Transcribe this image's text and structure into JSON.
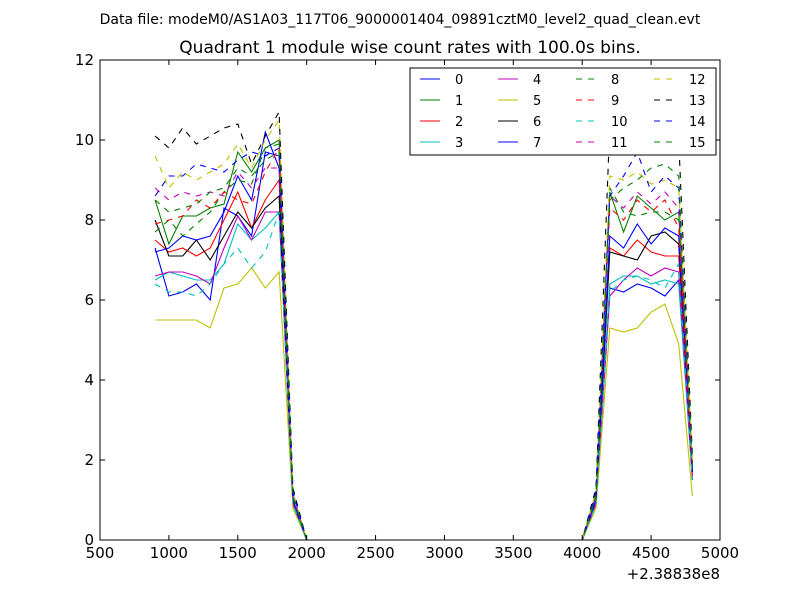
{
  "figure": {
    "suptitle": "Data file: modeM0/AS1A03_117T06_9000001404_09891cztM0_level2_quad_clean.evt"
  },
  "chart_data": {
    "type": "line",
    "title": "Quadrant 1 module wise count rates with 100.0s bins.",
    "xlabel": "",
    "ylabel": "",
    "x_offset_label": "+2.38838e8",
    "xlim": [
      500,
      5000
    ],
    "ylim": [
      0,
      12
    ],
    "xticks": [
      500,
      1000,
      1500,
      2000,
      2500,
      3000,
      3500,
      4000,
      4500,
      5000
    ],
    "yticks": [
      0,
      2,
      4,
      6,
      8,
      10,
      12
    ],
    "grid": false,
    "legend_position": "top-right",
    "legend_columns": 4,
    "x": [
      900,
      1000,
      1100,
      1200,
      1300,
      1400,
      1500,
      1600,
      1700,
      1800,
      1900,
      2000,
      2100,
      2200,
      2300,
      2400,
      2500,
      2600,
      2700,
      2800,
      2900,
      3000,
      3100,
      3200,
      3300,
      3400,
      3500,
      3600,
      3700,
      3800,
      3900,
      4000,
      4100,
      4200,
      4300,
      4400,
      4500,
      4600,
      4700,
      4800
    ],
    "series": [
      {
        "name": "0",
        "color": "#0000ff",
        "dash": "solid",
        "values": [
          7.3,
          6.1,
          6.2,
          6.4,
          6.0,
          8.3,
          8.1,
          7.6,
          9.7,
          9.6,
          0.9,
          0,
          0,
          0,
          0,
          0,
          0,
          0,
          0,
          0,
          0,
          0,
          0,
          0,
          0,
          0,
          0,
          0,
          0,
          0,
          0,
          0,
          1.0,
          6.3,
          6.2,
          6.4,
          6.3,
          6.1,
          6.5,
          1.7
        ]
      },
      {
        "name": "1",
        "color": "#008000",
        "dash": "solid",
        "values": [
          8.5,
          7.4,
          8.1,
          8.1,
          8.3,
          8.4,
          9.7,
          9.2,
          9.8,
          10.0,
          1.0,
          0,
          0,
          0,
          0,
          0,
          0,
          0,
          0,
          0,
          0,
          0,
          0,
          0,
          0,
          0,
          0,
          0,
          0,
          0,
          0,
          0,
          1.1,
          8.7,
          7.7,
          8.6,
          8.3,
          8.0,
          8.2,
          1.8
        ]
      },
      {
        "name": "2",
        "color": "#ff0000",
        "dash": "solid",
        "values": [
          7.5,
          7.2,
          7.3,
          7.1,
          7.3,
          8.0,
          8.7,
          7.8,
          8.5,
          9.0,
          1.0,
          0,
          0,
          0,
          0,
          0,
          0,
          0,
          0,
          0,
          0,
          0,
          0,
          0,
          0,
          0,
          0,
          0,
          0,
          0,
          0,
          0,
          1.0,
          7.3,
          7.1,
          7.5,
          7.2,
          7.1,
          7.1,
          1.6
        ]
      },
      {
        "name": "3",
        "color": "#00bfbf",
        "dash": "solid",
        "values": [
          6.5,
          6.7,
          6.6,
          6.5,
          6.5,
          6.9,
          7.9,
          7.5,
          7.8,
          8.2,
          0.9,
          0,
          0,
          0,
          0,
          0,
          0,
          0,
          0,
          0,
          0,
          0,
          0,
          0,
          0,
          0,
          0,
          0,
          0,
          0,
          0,
          0,
          0.9,
          6.4,
          6.6,
          6.6,
          6.4,
          6.5,
          6.4,
          1.5
        ]
      },
      {
        "name": "4",
        "color": "#bf00bf",
        "dash": "solid",
        "values": [
          6.6,
          6.7,
          6.7,
          6.6,
          6.4,
          7.3,
          8.1,
          7.5,
          8.2,
          8.2,
          0.9,
          0,
          0,
          0,
          0,
          0,
          0,
          0,
          0,
          0,
          0,
          0,
          0,
          0,
          0,
          0,
          0,
          0,
          0,
          0,
          0,
          0,
          0.9,
          6.1,
          6.5,
          6.8,
          6.6,
          6.8,
          6.7,
          1.5
        ]
      },
      {
        "name": "5",
        "color": "#bfbf00",
        "dash": "solid",
        "values": [
          5.5,
          5.5,
          5.5,
          5.5,
          5.3,
          6.3,
          6.4,
          6.8,
          6.3,
          6.7,
          0.8,
          0,
          0,
          0,
          0,
          0,
          0,
          0,
          0,
          0,
          0,
          0,
          0,
          0,
          0,
          0,
          0,
          0,
          0,
          0,
          0,
          0,
          0.8,
          5.3,
          5.2,
          5.3,
          5.7,
          5.9,
          4.9,
          1.1
        ]
      },
      {
        "name": "6",
        "color": "#000000",
        "dash": "solid",
        "values": [
          8.0,
          7.1,
          7.1,
          7.5,
          7.0,
          7.6,
          8.2,
          7.8,
          8.3,
          8.6,
          1.0,
          0,
          0,
          0,
          0,
          0,
          0,
          0,
          0,
          0,
          0,
          0,
          0,
          0,
          0,
          0,
          0,
          0,
          0,
          0,
          0,
          0,
          1.0,
          7.2,
          7.1,
          7.0,
          7.6,
          7.7,
          7.4,
          1.7
        ]
      },
      {
        "name": "7",
        "color": "#0000ff",
        "dash": "solid",
        "values": [
          7.2,
          7.3,
          7.6,
          7.5,
          7.6,
          8.2,
          9.1,
          8.5,
          10.2,
          9.3,
          1.0,
          0,
          0,
          0,
          0,
          0,
          0,
          0,
          0,
          0,
          0,
          0,
          0,
          0,
          0,
          0,
          0,
          0,
          0,
          0,
          0,
          0,
          1.0,
          7.6,
          7.3,
          7.9,
          7.4,
          7.8,
          7.6,
          1.7
        ]
      },
      {
        "name": "8",
        "color": "#008000",
        "dash": "dashed",
        "values": [
          7.7,
          8.0,
          7.6,
          7.9,
          8.2,
          8.7,
          9.0,
          8.9,
          9.8,
          9.9,
          1.1,
          0,
          0,
          0,
          0,
          0,
          0,
          0,
          0,
          0,
          0,
          0,
          0,
          0,
          0,
          0,
          0,
          0,
          0,
          0,
          0,
          0,
          1.2,
          8.8,
          8.2,
          8.1,
          8.2,
          8.2,
          8.0,
          1.9
        ]
      },
      {
        "name": "9",
        "color": "#ff0000",
        "dash": "dashed",
        "values": [
          7.9,
          8.0,
          8.1,
          8.5,
          8.3,
          8.7,
          8.5,
          8.4,
          9.2,
          9.8,
          1.1,
          0,
          0,
          0,
          0,
          0,
          0,
          0,
          0,
          0,
          0,
          0,
          0,
          0,
          0,
          0,
          0,
          0,
          0,
          0,
          0,
          0,
          1.1,
          8.3,
          8.0,
          8.5,
          8.2,
          8.5,
          7.8,
          1.8
        ]
      },
      {
        "name": "10",
        "color": "#00bfbf",
        "dash": "dashed",
        "values": [
          6.4,
          6.2,
          6.2,
          6.1,
          6.4,
          6.9,
          7.3,
          6.8,
          7.2,
          8.2,
          0.9,
          0,
          0,
          0,
          0,
          0,
          0,
          0,
          0,
          0,
          0,
          0,
          0,
          0,
          0,
          0,
          0,
          0,
          0,
          0,
          0,
          0,
          0.9,
          6.2,
          6.5,
          6.6,
          6.5,
          6.3,
          6.9,
          1.5
        ]
      },
      {
        "name": "11",
        "color": "#bf00bf",
        "dash": "dashed",
        "values": [
          8.8,
          8.5,
          8.7,
          8.6,
          8.7,
          8.6,
          9.2,
          8.8,
          9.3,
          9.3,
          1.1,
          0,
          0,
          0,
          0,
          0,
          0,
          0,
          0,
          0,
          0,
          0,
          0,
          0,
          0,
          0,
          0,
          0,
          0,
          0,
          0,
          0,
          1.1,
          8.6,
          8.3,
          8.7,
          8.4,
          8.7,
          8.3,
          1.9
        ]
      },
      {
        "name": "12",
        "color": "#bfbf00",
        "dash": "dashed",
        "values": [
          9.6,
          8.8,
          9.2,
          9.0,
          9.2,
          9.4,
          9.9,
          9.3,
          10.0,
          10.5,
          1.2,
          0,
          0,
          0,
          0,
          0,
          0,
          0,
          0,
          0,
          0,
          0,
          0,
          0,
          0,
          0,
          0,
          0,
          0,
          0,
          0,
          0,
          1.2,
          9.1,
          9.0,
          9.2,
          8.9,
          9.0,
          8.8,
          2.0
        ]
      },
      {
        "name": "13",
        "color": "#000000",
        "dash": "dashed",
        "values": [
          10.1,
          9.8,
          10.3,
          9.9,
          10.1,
          10.3,
          10.4,
          9.4,
          10.1,
          10.7,
          1.3,
          0,
          0,
          0,
          0,
          0,
          0,
          0,
          0,
          0,
          0,
          0,
          0,
          0,
          0,
          0,
          0,
          0,
          0,
          0,
          0,
          0,
          1.3,
          10.4,
          10.2,
          10.1,
          10.0,
          9.9,
          10.0,
          2.1
        ]
      },
      {
        "name": "14",
        "color": "#0000ff",
        "dash": "dashed",
        "values": [
          8.6,
          9.1,
          9.1,
          9.4,
          9.3,
          9.2,
          9.5,
          9.7,
          9.6,
          9.8,
          1.2,
          0,
          0,
          0,
          0,
          0,
          0,
          0,
          0,
          0,
          0,
          0,
          0,
          0,
          0,
          0,
          0,
          0,
          0,
          0,
          0,
          0,
          1.2,
          8.6,
          9.1,
          9.7,
          8.7,
          9.1,
          8.8,
          1.9
        ]
      },
      {
        "name": "15",
        "color": "#008000",
        "dash": "dashed",
        "values": [
          8.5,
          8.2,
          8.3,
          8.4,
          8.7,
          8.8,
          9.3,
          9.1,
          9.5,
          9.7,
          1.1,
          0,
          0,
          0,
          0,
          0,
          0,
          0,
          0,
          0,
          0,
          0,
          0,
          0,
          0,
          0,
          0,
          0,
          0,
          0,
          0,
          0,
          1.1,
          8.5,
          8.8,
          9.0,
          9.3,
          9.4,
          9.1,
          1.9
        ]
      }
    ]
  }
}
